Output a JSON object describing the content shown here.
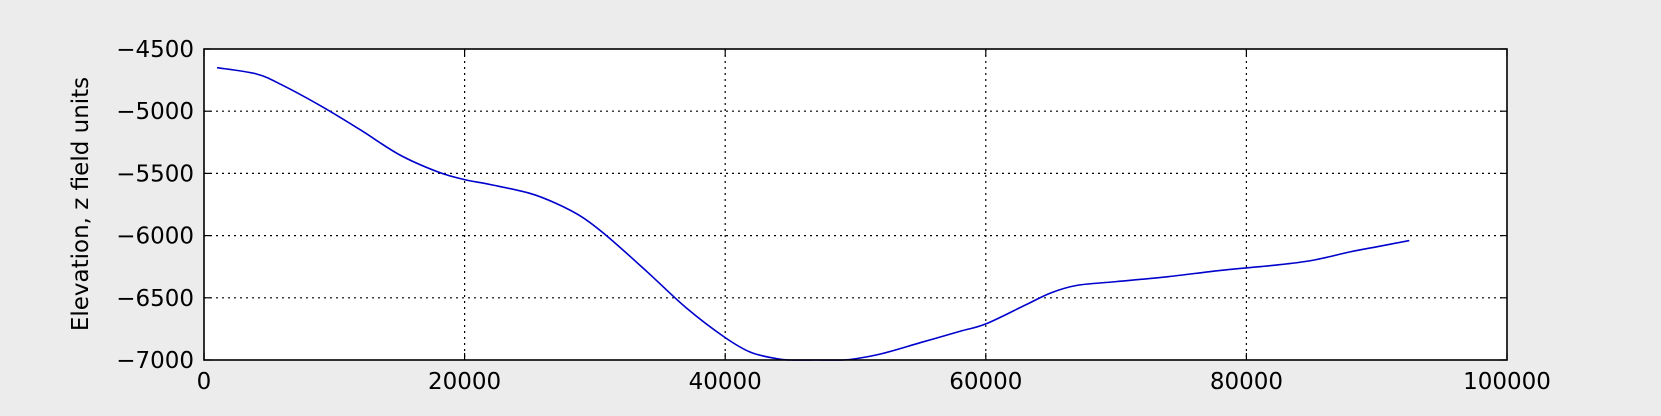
{
  "chart_data": {
    "type": "line",
    "title": "",
    "xlabel": "",
    "ylabel": "Elevation, z field units",
    "xlim": [
      0,
      100000
    ],
    "ylim": [
      -7000,
      -4500
    ],
    "xticks": [
      0,
      20000,
      40000,
      60000,
      80000,
      100000
    ],
    "yticks": [
      -4500,
      -5000,
      -5500,
      -6000,
      -6500,
      -7000
    ],
    "xtick_labels": [
      "0",
      "20000",
      "40000",
      "60000",
      "80000",
      "100000"
    ],
    "ytick_labels": [
      "−4500",
      "−5000",
      "−5500",
      "−6000",
      "−6500",
      "−7000"
    ],
    "grid": true,
    "series": [
      {
        "color": "#0000cc",
        "x": [
          1000,
          4000,
          6000,
          9000,
          12000,
          15000,
          18000,
          20000,
          22000,
          25000,
          27000,
          29000,
          31000,
          34000,
          37000,
          40000,
          42000,
          44000,
          45000,
          47000,
          49000,
          50000,
          52000,
          55000,
          58000,
          60000,
          63000,
          65000,
          67000,
          70000,
          74000,
          78000,
          82000,
          85000,
          88000,
          90000,
          92500
        ],
        "y": [
          -4650,
          -4700,
          -4790,
          -4960,
          -5150,
          -5350,
          -5490,
          -5550,
          -5590,
          -5660,
          -5740,
          -5850,
          -6010,
          -6290,
          -6580,
          -6820,
          -6940,
          -6990,
          -7000,
          -7000,
          -7000,
          -6990,
          -6950,
          -6860,
          -6770,
          -6710,
          -6560,
          -6460,
          -6400,
          -6370,
          -6330,
          -6280,
          -6240,
          -6200,
          -6130,
          -6090,
          -6040
        ]
      }
    ]
  }
}
